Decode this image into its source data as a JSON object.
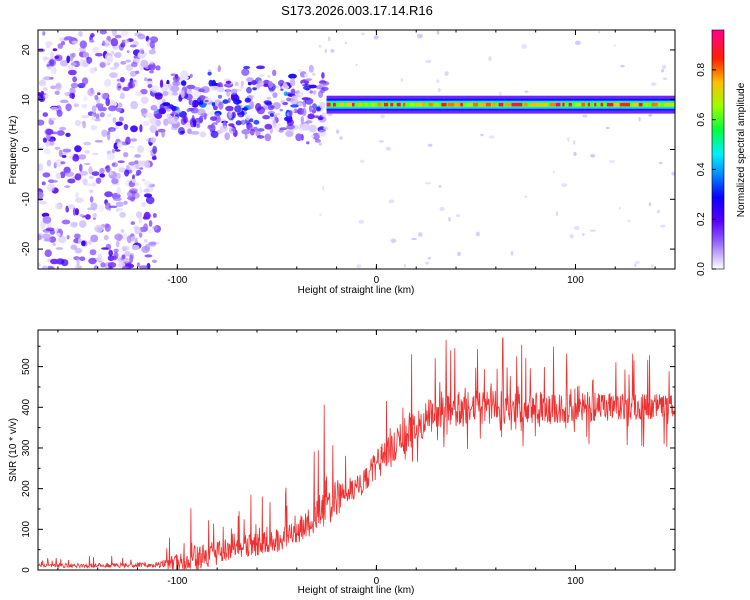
{
  "figure": {
    "title": "S173.2026.003.17.14.R16"
  },
  "chart_data": [
    {
      "type": "heatmap",
      "name": "spectrogram",
      "title": "",
      "xlabel": "Height of straight line (km)",
      "ylabel": "Frequency (Hz)",
      "xlim": [
        -170,
        150
      ],
      "ylim": [
        -24,
        24
      ],
      "x_ticks": [
        -100,
        0,
        100
      ],
      "y_ticks": [
        -20,
        -10,
        0,
        10,
        20
      ],
      "colorbar": {
        "label": "Normalized spectral amplitude",
        "range": [
          0,
          0.96
        ],
        "ticks": [
          0.0,
          0.2,
          0.4,
          0.6,
          0.8
        ],
        "stops": [
          "#ffffff",
          "#9c63ff",
          "#6a00ff",
          "#0000ff",
          "#00e0ff",
          "#00ff40",
          "#c0ff00",
          "#ffa000",
          "#ff1010",
          "#ff00a0"
        ]
      },
      "signal_band": {
        "frequency_hz": 9,
        "start_height_km": -25,
        "end_height_km": 150
      },
      "noise_regions": [
        {
          "x_range": [
            -170,
            -110
          ],
          "y_range": [
            -24,
            24
          ],
          "amplitude": 0.15
        },
        {
          "x_range": [
            -110,
            -25
          ],
          "y_range": [
            0,
            20
          ],
          "amplitude": 0.2
        }
      ]
    },
    {
      "type": "line",
      "name": "snr",
      "title": "",
      "xlabel": "Height of straight line (km)",
      "ylabel": "SNR (10 * v/v)",
      "xlim": [
        -170,
        150
      ],
      "ylim": [
        0,
        590
      ],
      "x_ticks": [
        -100,
        0,
        100
      ],
      "y_ticks": [
        0,
        100,
        200,
        300,
        400,
        500
      ],
      "series_color": "#ef3030",
      "envelope": {
        "x": [
          -170,
          -110,
          -100,
          -90,
          -80,
          -70,
          -60,
          -50,
          -40,
          -30,
          -25,
          -20,
          -15,
          -10,
          -5,
          0,
          5,
          10,
          15,
          20,
          25,
          30,
          40,
          50,
          60,
          70,
          80,
          90,
          100,
          110,
          120,
          130,
          140,
          150
        ],
        "baseline": [
          10,
          12,
          15,
          25,
          40,
          55,
          60,
          70,
          90,
          130,
          160,
          170,
          185,
          200,
          220,
          255,
          280,
          300,
          330,
          350,
          370,
          380,
          390,
          395,
          395,
          395,
          390,
          390,
          395,
          395,
          395,
          398,
          400,
          400
        ],
        "peak": [
          30,
          40,
          120,
          180,
          170,
          180,
          190,
          200,
          240,
          300,
          450,
          380,
          300,
          330,
          360,
          420,
          460,
          500,
          530,
          560,
          560,
          570,
          580,
          590,
          580,
          560,
          570,
          560,
          560,
          560,
          550,
          540,
          540,
          520
        ]
      }
    }
  ]
}
